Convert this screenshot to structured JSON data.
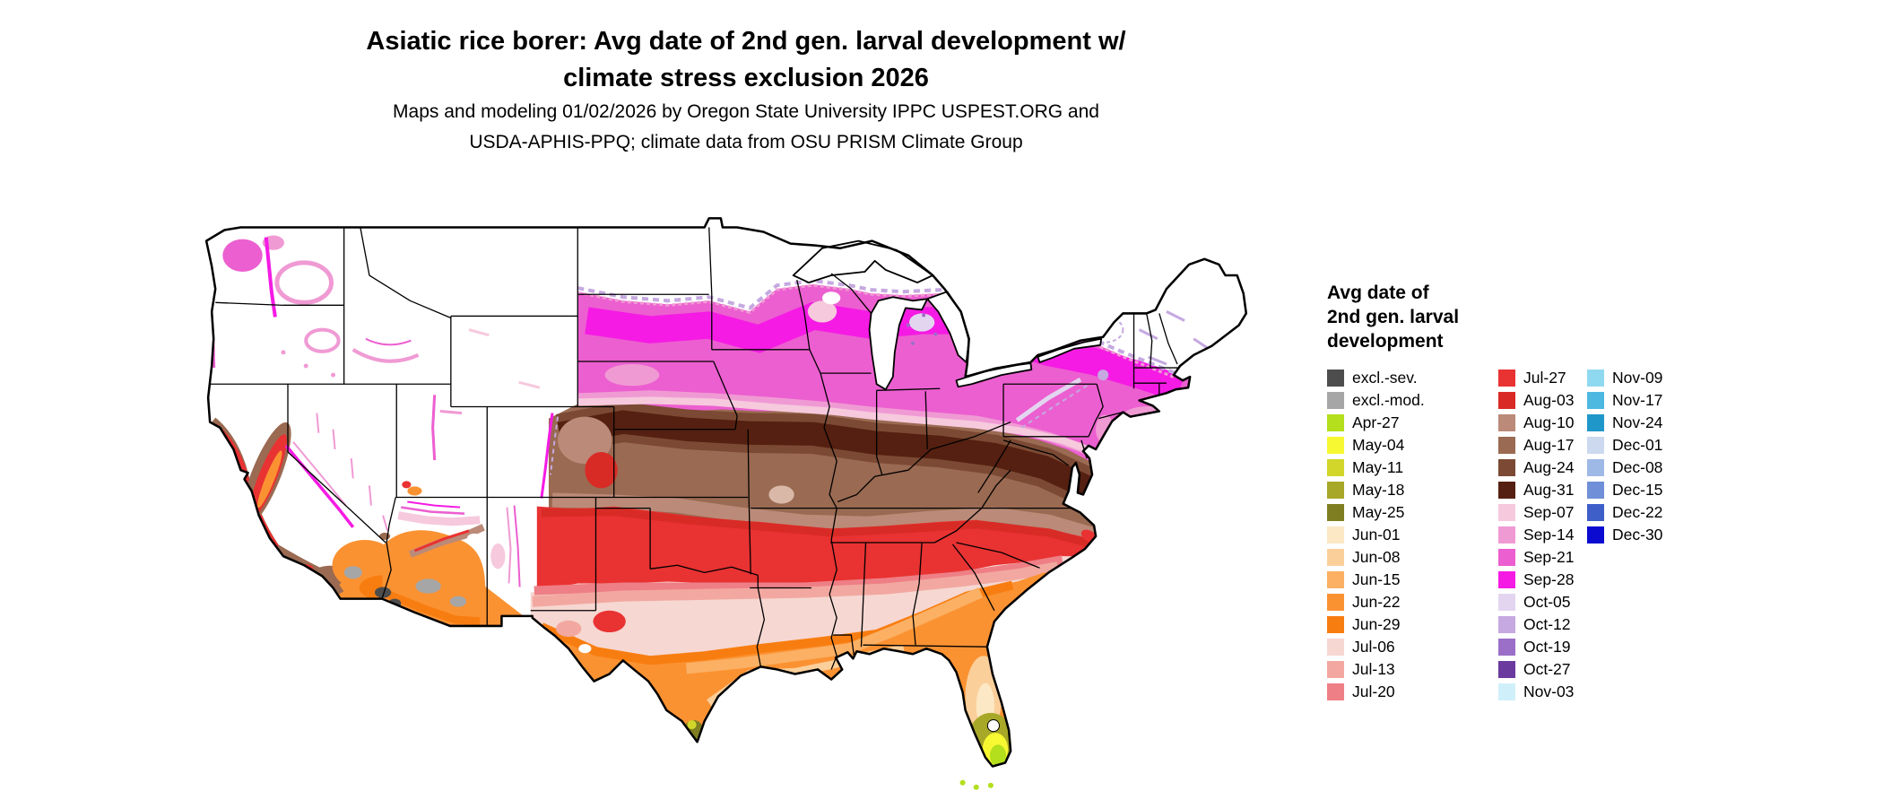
{
  "title": {
    "line1": "Asiatic rice borer: Avg date of 2nd gen. larval development w/",
    "line2": "climate stress exclusion 2026"
  },
  "subtitle": {
    "line1": "Maps and modeling 01/02/2026 by Oregon State University IPPC USPEST.ORG and",
    "line2": "USDA-APHIS-PPQ; climate data from OSU PRISM Climate Group"
  },
  "legend": {
    "title_lines": [
      "Avg date of",
      "2nd gen. larval",
      "development"
    ],
    "columns": [
      [
        {
          "label": "excl.-sev.",
          "color": "#4d4d4d"
        },
        {
          "label": "excl.-mod.",
          "color": "#a6a6a6"
        },
        {
          "label": "Apr-27",
          "color": "#b3df1c"
        },
        {
          "label": "May-04",
          "color": "#f8f832"
        },
        {
          "label": "May-11",
          "color": "#d2d62a"
        },
        {
          "label": "May-18",
          "color": "#a8a828"
        },
        {
          "label": "May-25",
          "color": "#7f7f22"
        },
        {
          "label": "Jun-01",
          "color": "#fce8c4"
        },
        {
          "label": "Jun-08",
          "color": "#fbcf9a"
        },
        {
          "label": "Jun-15",
          "color": "#fbb064"
        },
        {
          "label": "Jun-22",
          "color": "#fb9232"
        },
        {
          "label": "Jun-29",
          "color": "#f87d10"
        },
        {
          "label": "Jul-06",
          "color": "#f6d7d2"
        },
        {
          "label": "Jul-13",
          "color": "#f2a8a0"
        },
        {
          "label": "Jul-20",
          "color": "#ee7f86"
        }
      ],
      [
        {
          "label": "Jul-27",
          "color": "#e93232"
        },
        {
          "label": "Aug-03",
          "color": "#d92b26"
        },
        {
          "label": "Aug-10",
          "color": "#bb8a78"
        },
        {
          "label": "Aug-17",
          "color": "#9a6a52"
        },
        {
          "label": "Aug-24",
          "color": "#7c4a34"
        },
        {
          "label": "Aug-31",
          "color": "#552011"
        },
        {
          "label": "Sep-07",
          "color": "#f6c9dd"
        },
        {
          "label": "Sep-14",
          "color": "#f09ad4"
        },
        {
          "label": "Sep-21",
          "color": "#ec5fd0"
        },
        {
          "label": "Sep-28",
          "color": "#f51be4"
        },
        {
          "label": "Oct-05",
          "color": "#e3d5f0"
        },
        {
          "label": "Oct-12",
          "color": "#c5a9e0"
        },
        {
          "label": "Oct-19",
          "color": "#9b6fc8"
        },
        {
          "label": "Oct-27",
          "color": "#6a3a9e"
        },
        {
          "label": "Nov-03",
          "color": "#cff0fa"
        }
      ],
      [
        {
          "label": "Nov-09",
          "color": "#8fd9f0"
        },
        {
          "label": "Nov-17",
          "color": "#4db8e0"
        },
        {
          "label": "Nov-24",
          "color": "#1f97c9"
        },
        {
          "label": "Dec-01",
          "color": "#ccd9ef"
        },
        {
          "label": "Dec-08",
          "color": "#9fb9e6"
        },
        {
          "label": "Dec-15",
          "color": "#6f8fd8"
        },
        {
          "label": "Dec-22",
          "color": "#3f5fc8"
        },
        {
          "label": "Dec-30",
          "color": "#0a0ad0"
        }
      ]
    ]
  }
}
